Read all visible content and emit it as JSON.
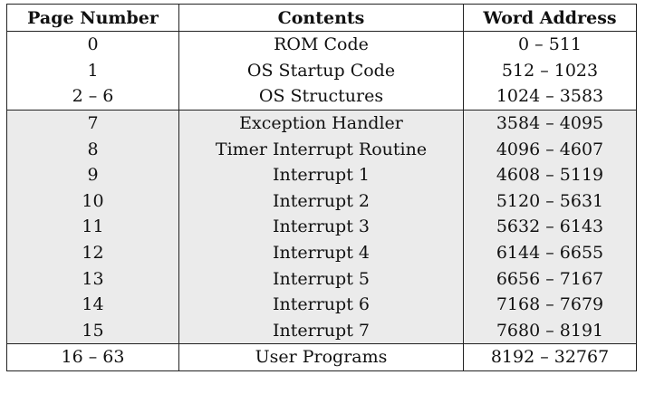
{
  "table": {
    "headers": [
      "Page Number",
      "Contents",
      "Word Address"
    ],
    "rows": [
      {
        "page": "0",
        "contents": "ROM Code",
        "address": "0 – 511",
        "shaded": false,
        "group_start": false
      },
      {
        "page": "1",
        "contents": "OS Startup Code",
        "address": "512 – 1023",
        "shaded": false,
        "group_start": false
      },
      {
        "page": "2 – 6",
        "contents": "OS Structures",
        "address": "1024 – 3583",
        "shaded": false,
        "group_start": false
      },
      {
        "page": "7",
        "contents": "Exception Handler",
        "address": "3584 – 4095",
        "shaded": true,
        "group_start": true
      },
      {
        "page": "8",
        "contents": "Timer Interrupt Routine",
        "address": "4096 – 4607",
        "shaded": true,
        "group_start": false
      },
      {
        "page": "9",
        "contents": "Interrupt 1",
        "address": "4608 – 5119",
        "shaded": true,
        "group_start": false
      },
      {
        "page": "10",
        "contents": "Interrupt 2",
        "address": "5120 – 5631",
        "shaded": true,
        "group_start": false
      },
      {
        "page": "11",
        "contents": "Interrupt 3",
        "address": "5632 – 6143",
        "shaded": true,
        "group_start": false
      },
      {
        "page": "12",
        "contents": "Interrupt 4",
        "address": "6144 – 6655",
        "shaded": true,
        "group_start": false
      },
      {
        "page": "13",
        "contents": "Interrupt 5",
        "address": "6656 – 7167",
        "shaded": true,
        "group_start": false
      },
      {
        "page": "14",
        "contents": "Interrupt 6",
        "address": "7168 – 7679",
        "shaded": true,
        "group_start": false
      },
      {
        "page": "15",
        "contents": "Interrupt 7",
        "address": "7680 – 8191",
        "shaded": true,
        "group_start": false
      },
      {
        "page": "16 – 63",
        "contents": "User Programs",
        "address": "8192 – 32767",
        "shaded": false,
        "group_start": true
      }
    ]
  }
}
